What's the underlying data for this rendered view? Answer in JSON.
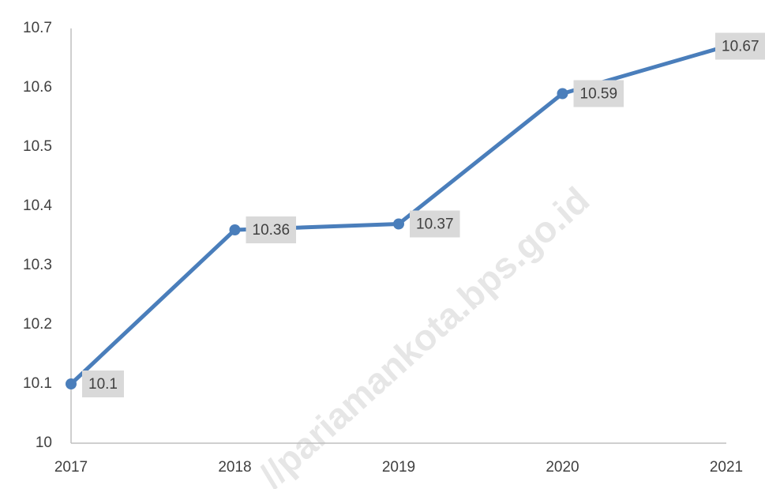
{
  "chart_data": {
    "type": "line",
    "categories": [
      "2017",
      "2018",
      "2019",
      "2020",
      "2021"
    ],
    "values": [
      10.1,
      10.36,
      10.37,
      10.59,
      10.67
    ],
    "color": "#4a7ebb",
    "ylim": [
      10,
      10.7
    ],
    "yticks": [
      10,
      10.1,
      10.2,
      10.3,
      10.4,
      10.5,
      10.6,
      10.7
    ],
    "grid": false,
    "watermark": "//pariamankota.bps.go.id"
  }
}
